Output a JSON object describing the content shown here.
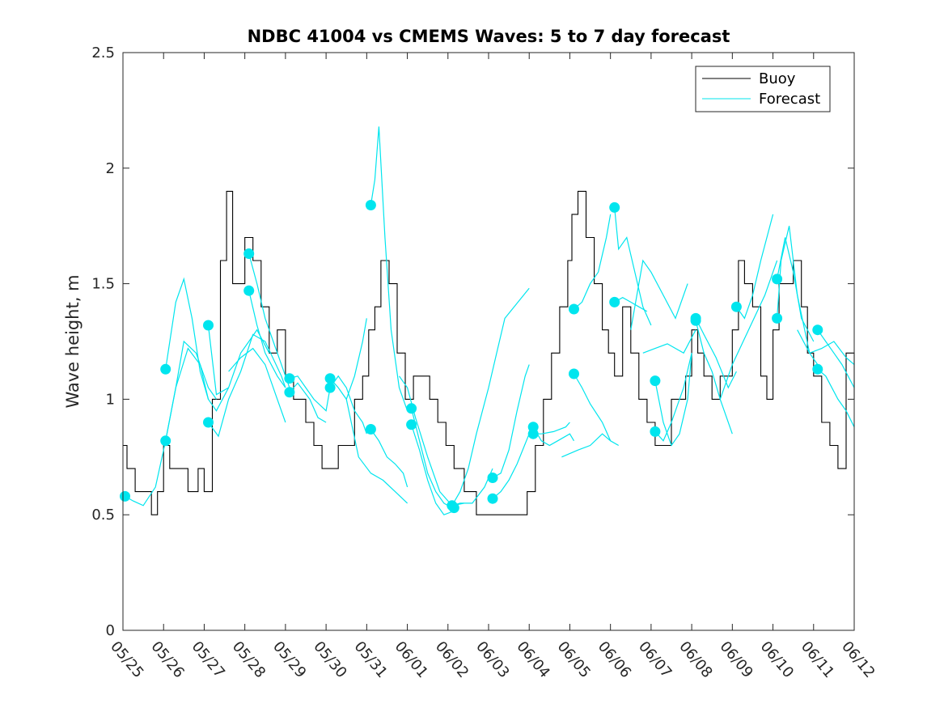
{
  "chart_data": {
    "type": "line",
    "title": "NDBC 41004 vs CMEMS Waves: 5 to 7 day forecast",
    "xlabel": "",
    "ylabel": "Wave height, m",
    "xlim": [
      "05/25",
      "06/12"
    ],
    "ylim": [
      0,
      2.5
    ],
    "yticks": [
      "0",
      "0.5",
      "1",
      "1.5",
      "2",
      "2.5"
    ],
    "xtick_labels": [
      "05/25",
      "05/26",
      "05/27",
      "05/28",
      "05/29",
      "05/30",
      "05/31",
      "06/01",
      "06/02",
      "06/03",
      "06/04",
      "06/05",
      "06/06",
      "06/07",
      "06/08",
      "06/09",
      "06/10",
      "06/11",
      "06/12"
    ],
    "grid": false,
    "legend": {
      "position": "top-right",
      "entries": [
        "Buoy",
        "Forecast"
      ]
    },
    "colors": {
      "buoy": "#000000",
      "forecast": "#00e5ee"
    },
    "buoy": {
      "name": "Buoy",
      "x": [
        0,
        0.1,
        0.2,
        0.3,
        0.5,
        0.7,
        0.85,
        1.0,
        1.15,
        1.3,
        1.6,
        1.85,
        2.0,
        2.2,
        2.4,
        2.55,
        2.7,
        2.85,
        3.0,
        3.2,
        3.4,
        3.6,
        3.8,
        4.0,
        4.2,
        4.5,
        4.7,
        4.9,
        5.1,
        5.3,
        5.5,
        5.7,
        5.9,
        6.05,
        6.2,
        6.35,
        6.55,
        6.75,
        6.95,
        7.15,
        7.35,
        7.55,
        7.75,
        7.95,
        8.15,
        8.4,
        8.7,
        9.0,
        9.3,
        9.55,
        9.75,
        9.95,
        10.15,
        10.35,
        10.55,
        10.75,
        10.95,
        11.05,
        11.2,
        11.4,
        11.6,
        11.8,
        11.95,
        12.1,
        12.3,
        12.5,
        12.7,
        12.9,
        13.1,
        13.3,
        13.5,
        13.7,
        13.85,
        14.0,
        14.15,
        14.3,
        14.5,
        14.7,
        14.85,
        15.0,
        15.15,
        15.3,
        15.5,
        15.7,
        15.85,
        16.0,
        16.15,
        16.3,
        16.5,
        16.7,
        16.85,
        17.0,
        17.2,
        17.4,
        17.6,
        17.8,
        18.0
      ],
      "y": [
        0.8,
        0.7,
        0.7,
        0.6,
        0.6,
        0.5,
        0.6,
        0.8,
        0.7,
        0.7,
        0.6,
        0.7,
        0.6,
        1.0,
        1.6,
        1.9,
        1.5,
        1.5,
        1.7,
        1.6,
        1.4,
        1.2,
        1.3,
        1.1,
        1.0,
        0.9,
        0.8,
        0.7,
        0.7,
        0.8,
        0.8,
        1.0,
        1.1,
        1.3,
        1.4,
        1.6,
        1.5,
        1.2,
        1.0,
        1.1,
        1.1,
        1.0,
        0.9,
        0.8,
        0.7,
        0.6,
        0.5,
        0.5,
        0.5,
        0.5,
        0.5,
        0.6,
        0.8,
        1.0,
        1.2,
        1.4,
        1.6,
        1.8,
        1.9,
        1.7,
        1.5,
        1.3,
        1.2,
        1.1,
        1.4,
        1.2,
        1.0,
        0.9,
        0.8,
        0.8,
        1.0,
        1.0,
        1.1,
        1.3,
        1.2,
        1.1,
        1.0,
        1.1,
        1.1,
        1.3,
        1.6,
        1.5,
        1.4,
        1.1,
        1.0,
        1.3,
        1.5,
        1.5,
        1.6,
        1.4,
        1.2,
        1.1,
        0.9,
        0.8,
        0.7,
        1.2,
        1.0
      ]
    },
    "forecast": {
      "name": "Forecast",
      "series": [
        {
          "x": [
            0.05,
            0.25,
            0.5,
            0.8,
            1.05,
            1.3,
            1.5,
            1.8,
            2.1,
            2.3
          ],
          "y": [
            0.58,
            0.56,
            0.54,
            0.62,
            0.82,
            1.05,
            1.25,
            1.2,
            1.05,
            1.0
          ]
        },
        {
          "x": [
            1.05,
            1.3,
            1.5,
            1.7,
            1.9,
            2.1,
            2.3,
            2.6
          ],
          "y": [
            1.13,
            1.42,
            1.52,
            1.35,
            1.12,
            1.0,
            0.95,
            1.05
          ]
        },
        {
          "x": [
            1.05,
            1.3,
            1.6,
            1.9,
            2.1
          ],
          "y": [
            0.82,
            1.05,
            1.22,
            1.15,
            1.0
          ]
        },
        {
          "x": [
            2.1,
            2.3,
            2.6,
            2.9,
            3.1,
            3.3,
            3.6
          ],
          "y": [
            1.32,
            1.02,
            1.05,
            1.2,
            1.25,
            1.3,
            1.2
          ]
        },
        {
          "x": [
            2.1,
            2.35,
            2.6,
            2.9,
            3.2,
            3.5,
            3.9,
            4.0
          ],
          "y": [
            0.9,
            0.84,
            1.0,
            1.12,
            1.28,
            1.25,
            1.1,
            1.05
          ]
        },
        {
          "x": [
            3.1,
            3.3,
            3.5,
            3.7,
            3.9,
            4.1
          ],
          "y": [
            1.63,
            1.5,
            1.35,
            1.25,
            1.15,
            1.05
          ]
        },
        {
          "x": [
            3.1,
            3.3,
            3.5,
            3.8,
            4.0
          ],
          "y": [
            1.47,
            1.32,
            1.2,
            1.1,
            1.05
          ]
        },
        {
          "x": [
            2.6,
            2.9,
            3.2,
            3.5,
            3.8,
            4.0
          ],
          "y": [
            1.12,
            1.18,
            1.22,
            1.15,
            1.0,
            0.9
          ]
        },
        {
          "x": [
            4.1,
            4.3,
            4.5,
            4.7,
            5.0,
            5.1
          ],
          "y": [
            1.09,
            1.1,
            1.05,
            1.0,
            0.95,
            1.05
          ]
        },
        {
          "x": [
            4.1,
            4.3,
            4.6,
            4.8,
            5.0
          ],
          "y": [
            1.03,
            1.07,
            1.0,
            0.92,
            0.9
          ]
        },
        {
          "x": [
            5.1,
            5.3,
            5.5,
            5.7,
            5.9,
            6.0
          ],
          "y": [
            1.09,
            1.05,
            1.0,
            1.1,
            1.25,
            1.35
          ]
        },
        {
          "x": [
            5.1,
            5.3,
            5.5,
            5.7,
            5.9,
            6.0
          ],
          "y": [
            1.05,
            1.1,
            1.05,
            0.95,
            0.9,
            0.85
          ]
        },
        {
          "x": [
            6.1,
            6.2,
            6.3,
            6.45,
            6.6,
            6.8,
            7.0
          ],
          "y": [
            1.84,
            1.95,
            2.18,
            1.7,
            1.3,
            1.05,
            0.95
          ]
        },
        {
          "x": [
            6.1,
            6.3,
            6.5,
            6.7,
            6.9,
            7.0
          ],
          "y": [
            0.87,
            0.82,
            0.75,
            0.72,
            0.68,
            0.62
          ]
        },
        {
          "x": [
            5.5,
            5.8,
            6.1,
            6.4,
            6.7,
            7.0
          ],
          "y": [
            1.0,
            0.75,
            0.68,
            0.65,
            0.6,
            0.55
          ]
        },
        {
          "x": [
            7.1,
            7.3,
            7.5,
            7.7,
            7.9,
            8.1
          ],
          "y": [
            0.96,
            0.82,
            0.68,
            0.6,
            0.55,
            0.53
          ]
        },
        {
          "x": [
            7.1,
            7.3,
            7.5,
            7.7,
            7.9,
            8.2
          ],
          "y": [
            0.89,
            0.78,
            0.65,
            0.55,
            0.5,
            0.52
          ]
        },
        {
          "x": [
            6.8,
            7.0,
            7.2,
            7.5,
            7.8,
            8.1,
            8.4
          ],
          "y": [
            1.1,
            1.05,
            0.92,
            0.75,
            0.6,
            0.54,
            0.55
          ]
        },
        {
          "x": [
            8.1,
            8.3,
            8.6,
            8.9,
            9.1
          ],
          "y": [
            0.54,
            0.55,
            0.55,
            0.62,
            0.7
          ]
        },
        {
          "x": [
            8.1,
            8.3,
            8.5,
            8.7,
            9.0,
            9.2,
            9.4,
            10.0
          ],
          "y": [
            0.54,
            0.6,
            0.7,
            0.85,
            1.05,
            1.2,
            1.35,
            1.48
          ]
        },
        {
          "x": [
            9.1,
            9.3,
            9.5,
            9.7,
            9.9,
            10.0
          ],
          "y": [
            0.66,
            0.68,
            0.78,
            0.95,
            1.1,
            1.15
          ]
        },
        {
          "x": [
            9.1,
            9.3,
            9.5,
            9.7,
            10.0
          ],
          "y": [
            0.57,
            0.6,
            0.65,
            0.72,
            0.85
          ]
        },
        {
          "x": [
            10.1,
            10.3,
            10.5,
            10.7,
            11.0,
            11.1
          ],
          "y": [
            0.88,
            0.82,
            0.8,
            0.82,
            0.85,
            0.82
          ]
        },
        {
          "x": [
            10.1,
            10.3,
            10.6,
            10.9,
            11.0
          ],
          "y": [
            0.85,
            0.85,
            0.86,
            0.88,
            0.9
          ]
        },
        {
          "x": [
            10.8,
            11.2,
            11.5,
            11.8,
            12.0
          ],
          "y": [
            0.75,
            0.78,
            0.8,
            0.85,
            0.82
          ]
        },
        {
          "x": [
            11.1,
            11.3,
            11.5,
            11.7,
            11.9,
            12.0
          ],
          "y": [
            1.39,
            1.42,
            1.5,
            1.55,
            1.7,
            1.8
          ]
        },
        {
          "x": [
            11.1,
            11.3,
            11.5,
            11.8,
            12.0,
            12.2
          ],
          "y": [
            1.11,
            1.05,
            0.98,
            0.9,
            0.82,
            0.8
          ]
        },
        {
          "x": [
            12.1,
            12.2,
            12.4,
            12.6,
            12.8,
            13.0
          ],
          "y": [
            1.83,
            1.65,
            1.7,
            1.55,
            1.4,
            1.32
          ]
        },
        {
          "x": [
            12.1,
            12.3,
            12.5,
            12.7,
            12.9
          ],
          "y": [
            1.42,
            1.44,
            1.42,
            1.4,
            1.38
          ]
        },
        {
          "x": [
            12.5,
            12.8,
            13.0,
            13.3,
            13.6,
            13.9
          ],
          "y": [
            1.3,
            1.6,
            1.55,
            1.45,
            1.35,
            1.5
          ]
        },
        {
          "x": [
            13.1,
            13.3,
            13.5,
            13.7,
            13.9,
            14.0
          ],
          "y": [
            1.08,
            0.9,
            0.8,
            0.85,
            1.0,
            1.2
          ]
        },
        {
          "x": [
            13.1,
            13.3,
            13.5,
            13.8,
            14.0
          ],
          "y": [
            0.86,
            0.82,
            0.9,
            1.05,
            1.2
          ]
        },
        {
          "x": [
            12.8,
            13.1,
            13.4,
            13.8,
            14.1
          ],
          "y": [
            1.2,
            1.22,
            1.24,
            1.2,
            1.3
          ]
        },
        {
          "x": [
            14.1,
            14.3,
            14.5,
            14.7,
            15.0
          ],
          "y": [
            1.34,
            1.2,
            1.12,
            1.0,
            0.85
          ]
        },
        {
          "x": [
            14.1,
            14.3,
            14.6,
            14.9,
            15.1
          ],
          "y": [
            1.35,
            1.28,
            1.18,
            1.05,
            1.12
          ]
        },
        {
          "x": [
            15.1,
            15.3,
            15.5,
            15.7,
            16.0
          ],
          "y": [
            1.4,
            1.35,
            1.45,
            1.6,
            1.8
          ]
        },
        {
          "x": [
            14.7,
            15.0,
            15.4,
            15.8,
            16.1
          ],
          "y": [
            1.0,
            1.15,
            1.3,
            1.45,
            1.6
          ]
        },
        {
          "x": [
            16.1,
            16.3,
            16.5,
            16.7,
            17.0
          ],
          "y": [
            1.52,
            1.7,
            1.55,
            1.35,
            1.25
          ]
        },
        {
          "x": [
            16.1,
            16.2,
            16.4,
            16.6,
            16.9,
            17.1
          ],
          "y": [
            1.35,
            1.6,
            1.75,
            1.45,
            1.2,
            1.15
          ]
        },
        {
          "x": [
            17.1,
            17.3,
            17.5,
            17.7,
            18.0
          ],
          "y": [
            1.3,
            1.25,
            1.2,
            1.15,
            1.05
          ]
        },
        {
          "x": [
            17.1,
            17.3,
            17.6,
            17.8,
            18.0
          ],
          "y": [
            1.13,
            1.1,
            1.0,
            0.95,
            0.88
          ]
        },
        {
          "x": [
            16.6,
            16.9,
            17.2,
            17.5,
            17.8,
            18.0
          ],
          "y": [
            1.3,
            1.2,
            1.22,
            1.25,
            1.18,
            1.15
          ]
        }
      ],
      "markers": {
        "x": [
          0.05,
          1.05,
          1.05,
          2.1,
          2.1,
          3.1,
          3.1,
          4.1,
          4.1,
          5.1,
          5.1,
          6.1,
          6.1,
          7.1,
          7.1,
          8.1,
          8.15,
          9.1,
          9.1,
          10.1,
          10.1,
          11.1,
          11.1,
          12.1,
          12.1,
          13.1,
          13.1,
          14.1,
          14.1,
          15.1,
          16.1,
          16.1,
          17.1,
          17.1
        ],
        "y": [
          0.58,
          1.13,
          0.82,
          1.32,
          0.9,
          1.63,
          1.47,
          1.09,
          1.03,
          1.09,
          1.05,
          1.84,
          0.87,
          0.96,
          0.89,
          0.54,
          0.53,
          0.66,
          0.57,
          0.88,
          0.85,
          1.39,
          1.11,
          1.83,
          1.42,
          1.08,
          0.86,
          1.34,
          1.35,
          1.4,
          1.52,
          1.35,
          1.3,
          1.13
        ]
      }
    }
  }
}
